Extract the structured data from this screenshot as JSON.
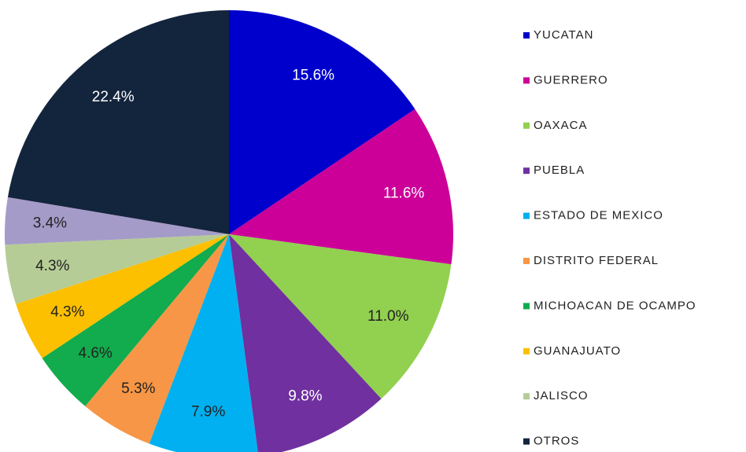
{
  "chart_data": {
    "type": "pie",
    "categories": [
      "YUCATAN",
      "GUERRERO",
      "OAXACA",
      "PUEBLA",
      "ESTADO DE MEXICO",
      "DISTRITO FEDERAL",
      "MICHOACAN DE OCAMPO",
      "GUANAJUATO",
      "JALISCO",
      null,
      "OTROS"
    ],
    "values": [
      15.6,
      11.6,
      11.0,
      9.8,
      7.9,
      5.3,
      4.6,
      4.3,
      4.3,
      3.4,
      22.4
    ],
    "value_labels": [
      "15.6%",
      "11.6%",
      "11.0%",
      "9.8%",
      "7.9%",
      "5.3%",
      "4.6%",
      "4.3%",
      "4.3%",
      "3.4%",
      "22.4%"
    ],
    "colors": [
      "#0000cc",
      "#cc0099",
      "#92d050",
      "#7030a0",
      "#00b0f0",
      "#f79646",
      "#12ab4d",
      "#fcc000",
      "#b6cc96",
      "#a59bc8",
      "#13243d"
    ],
    "legend": "right"
  }
}
